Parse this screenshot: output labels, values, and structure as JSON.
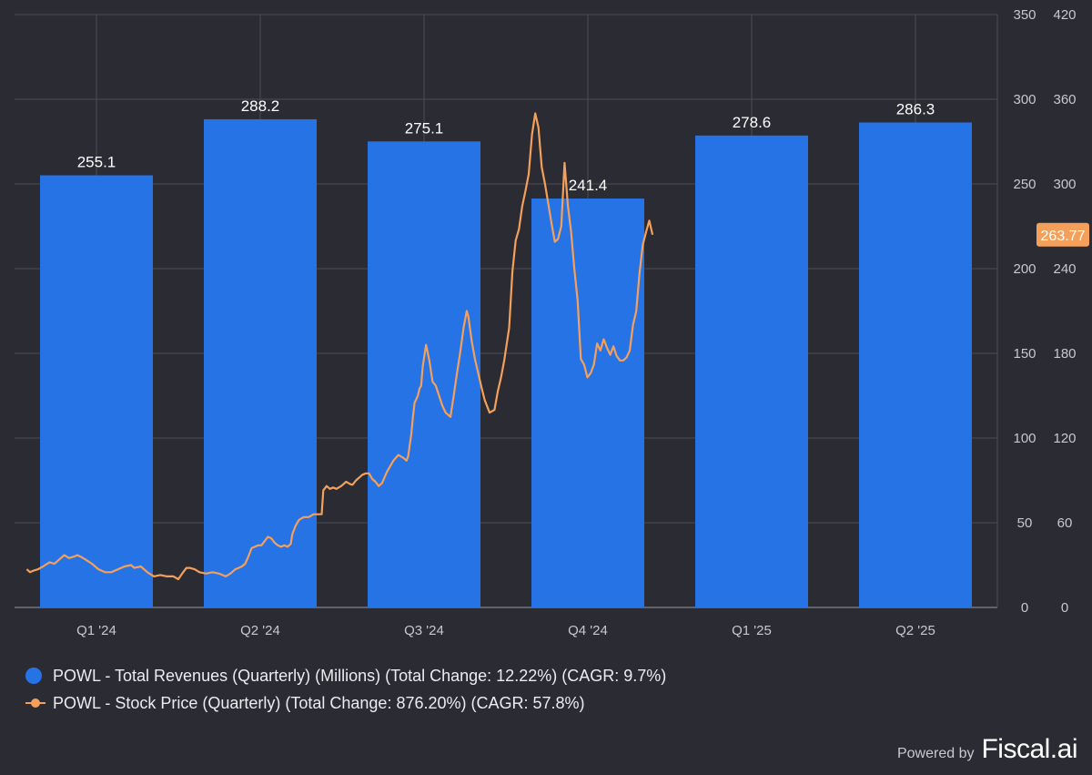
{
  "chart_data": {
    "type": "bar",
    "categories": [
      "Q1 '24",
      "Q2 '24",
      "Q3 '24",
      "Q4 '24",
      "Q1 '25",
      "Q2 '25"
    ],
    "series": [
      {
        "name": "POWL - Total Revenues (Quarterly) (Millions) (Total Change: 12.22%) (CAGR: 9.7%)",
        "type": "bar",
        "axis": "left",
        "values": [
          255.1,
          288.2,
          275.1,
          241.4,
          278.6,
          286.3
        ],
        "labels": [
          "255.1",
          "288.2",
          "275.1",
          "241.4",
          "278.6",
          "286.3"
        ]
      },
      {
        "name": "POWL - Stock Price (Quarterly) (Total Change: 876.20%) (CAGR: 57.8%)",
        "type": "line",
        "axis": "right",
        "last_value_label": "263.77",
        "points": [
          [
            0.0,
            27
          ],
          [
            0.02,
            25
          ],
          [
            0.04,
            26
          ],
          [
            0.07,
            27
          ],
          [
            0.1,
            29
          ],
          [
            0.14,
            32
          ],
          [
            0.17,
            31
          ],
          [
            0.2,
            34
          ],
          [
            0.23,
            37
          ],
          [
            0.26,
            35
          ],
          [
            0.29,
            36
          ],
          [
            0.31,
            37
          ],
          [
            0.33,
            36
          ],
          [
            0.36,
            34
          ],
          [
            0.4,
            31
          ],
          [
            0.44,
            27
          ],
          [
            0.48,
            25
          ],
          [
            0.52,
            25
          ],
          [
            0.56,
            27
          ],
          [
            0.6,
            29
          ],
          [
            0.64,
            30
          ],
          [
            0.66,
            28
          ],
          [
            0.7,
            29
          ],
          [
            0.74,
            25
          ],
          [
            0.78,
            22
          ],
          [
            0.82,
            23
          ],
          [
            0.86,
            22
          ],
          [
            0.9,
            22
          ],
          [
            0.93,
            20
          ],
          [
            0.96,
            25
          ],
          [
            0.98,
            28
          ],
          [
            1.0,
            28
          ],
          [
            1.03,
            27
          ],
          [
            1.06,
            25
          ],
          [
            1.1,
            24
          ],
          [
            1.14,
            25
          ],
          [
            1.18,
            24
          ],
          [
            1.22,
            22
          ],
          [
            1.25,
            24
          ],
          [
            1.28,
            27
          ],
          [
            1.3,
            28
          ],
          [
            1.32,
            29
          ],
          [
            1.34,
            31
          ],
          [
            1.36,
            36
          ],
          [
            1.38,
            42
          ],
          [
            1.4,
            43
          ],
          [
            1.42,
            44
          ],
          [
            1.44,
            44
          ],
          [
            1.46,
            47
          ],
          [
            1.48,
            50
          ],
          [
            1.5,
            49
          ],
          [
            1.52,
            46
          ],
          [
            1.54,
            44
          ],
          [
            1.56,
            43
          ],
          [
            1.58,
            44
          ],
          [
            1.6,
            43
          ],
          [
            1.62,
            45
          ],
          [
            1.63,
            52
          ],
          [
            1.65,
            58
          ],
          [
            1.67,
            62
          ],
          [
            1.7,
            64
          ],
          [
            1.73,
            64
          ],
          [
            1.76,
            66
          ],
          [
            1.79,
            66
          ],
          [
            1.81,
            66
          ],
          [
            1.82,
            83
          ],
          [
            1.84,
            86
          ],
          [
            1.86,
            84
          ],
          [
            1.88,
            85
          ],
          [
            1.9,
            84
          ],
          [
            1.93,
            86
          ],
          [
            1.96,
            89
          ],
          [
            1.99,
            87
          ],
          [
            2.0,
            87
          ],
          [
            2.02,
            90
          ],
          [
            2.04,
            92
          ],
          [
            2.06,
            94
          ],
          [
            2.08,
            95
          ],
          [
            2.1,
            95
          ],
          [
            2.12,
            91
          ],
          [
            2.14,
            89
          ],
          [
            2.16,
            86
          ],
          [
            2.18,
            88
          ],
          [
            2.21,
            96
          ],
          [
            2.25,
            104
          ],
          [
            2.28,
            108
          ],
          [
            2.31,
            106
          ],
          [
            2.33,
            104
          ],
          [
            2.34,
            107
          ],
          [
            2.36,
            123
          ],
          [
            2.37,
            135
          ],
          [
            2.38,
            145
          ],
          [
            2.4,
            150
          ],
          [
            2.41,
            155
          ],
          [
            2.42,
            157
          ],
          [
            2.43,
            171
          ],
          [
            2.45,
            186
          ],
          [
            2.47,
            175
          ],
          [
            2.49,
            160
          ],
          [
            2.51,
            157
          ],
          [
            2.53,
            150
          ],
          [
            2.55,
            143
          ],
          [
            2.57,
            138
          ],
          [
            2.6,
            135
          ],
          [
            2.62,
            150
          ],
          [
            2.64,
            166
          ],
          [
            2.66,
            181
          ],
          [
            2.68,
            198
          ],
          [
            2.7,
            210
          ],
          [
            2.71,
            206
          ],
          [
            2.73,
            189
          ],
          [
            2.75,
            176
          ],
          [
            2.77,
            166
          ],
          [
            2.79,
            156
          ],
          [
            2.81,
            147
          ],
          [
            2.84,
            138
          ],
          [
            2.87,
            140
          ],
          [
            2.89,
            153
          ],
          [
            2.91,
            163
          ],
          [
            2.93,
            175
          ],
          [
            2.96,
            198
          ],
          [
            2.98,
            238
          ],
          [
            3.0,
            260
          ],
          [
            3.02,
            268
          ],
          [
            3.04,
            284
          ],
          [
            3.06,
            295
          ],
          [
            3.08,
            307
          ],
          [
            3.1,
            335
          ],
          [
            3.12,
            350
          ],
          [
            3.14,
            340
          ],
          [
            3.16,
            312
          ],
          [
            3.18,
            300
          ],
          [
            3.2,
            286
          ],
          [
            3.22,
            272
          ],
          [
            3.24,
            259
          ],
          [
            3.26,
            261
          ],
          [
            3.28,
            270
          ],
          [
            3.3,
            315
          ],
          [
            3.32,
            285
          ],
          [
            3.34,
            266
          ],
          [
            3.36,
            240
          ],
          [
            3.38,
            218
          ],
          [
            3.4,
            176
          ],
          [
            3.42,
            172
          ],
          [
            3.44,
            163
          ],
          [
            3.46,
            166
          ],
          [
            3.48,
            172
          ],
          [
            3.5,
            187
          ],
          [
            3.52,
            182
          ],
          [
            3.54,
            190
          ],
          [
            3.56,
            184
          ],
          [
            3.58,
            179
          ],
          [
            3.6,
            185
          ],
          [
            3.62,
            178
          ],
          [
            3.64,
            175
          ],
          [
            3.66,
            175
          ],
          [
            3.68,
            177
          ],
          [
            3.7,
            182
          ],
          [
            3.72,
            200
          ],
          [
            3.74,
            210
          ],
          [
            3.76,
            237
          ],
          [
            3.78,
            257
          ],
          [
            3.8,
            266
          ],
          [
            3.82,
            274
          ],
          [
            3.84,
            264
          ]
        ]
      }
    ],
    "y_left": {
      "ticks": [
        0,
        50,
        100,
        150,
        200,
        250,
        300,
        350
      ],
      "range": [
        0,
        350
      ]
    },
    "y_right": {
      "ticks": [
        0,
        60,
        120,
        180,
        240,
        300,
        360,
        420
      ],
      "range": [
        0,
        420
      ]
    },
    "grid": true,
    "legend_position": "bottom-left",
    "colors": {
      "bar": "#2673e6",
      "line": "#f5a05a",
      "background": "#2a2b33",
      "grid": "#4c4d55"
    }
  },
  "brand": {
    "prefix": "Powered by",
    "name": "Fiscal.ai"
  }
}
